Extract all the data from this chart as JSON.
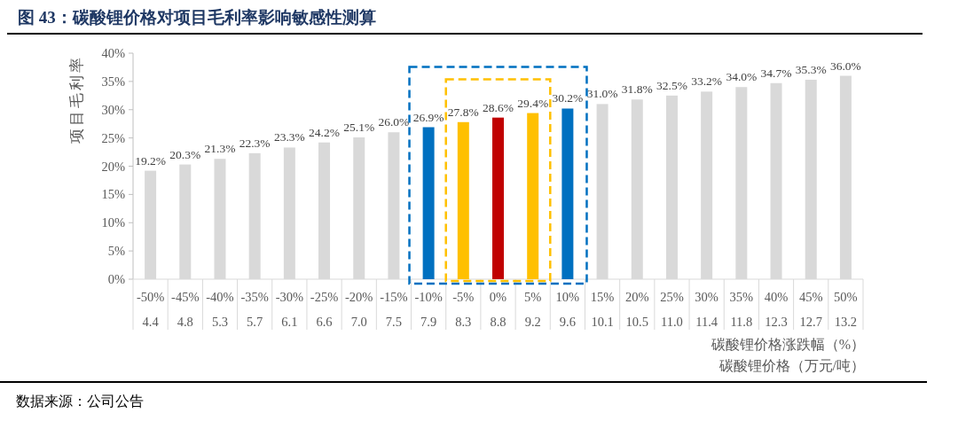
{
  "chart_data": {
    "type": "bar",
    "title": "图 43：碳酸锂价格对项目毛利率影响敏感性测算",
    "ylabel": "项目毛利率",
    "xlabel": "碳酸锂价格涨跌幅（%）",
    "categories": [
      "-50%",
      "-45%",
      "-40%",
      "-35%",
      "-30%",
      "-25%",
      "-20%",
      "-15%",
      "-10%",
      "-5%",
      "0%",
      "5%",
      "10%",
      "15%",
      "20%",
      "25%",
      "30%",
      "35%",
      "40%",
      "45%",
      "50%"
    ],
    "values": [
      19.2,
      20.3,
      21.3,
      22.3,
      23.3,
      24.2,
      25.1,
      26.0,
      26.9,
      27.8,
      28.6,
      29.4,
      30.2,
      31.0,
      31.8,
      32.5,
      33.2,
      34.0,
      34.7,
      35.3,
      36.0
    ],
    "value_labels": [
      "19.2%",
      "20.3%",
      "21.3%",
      "22.3%",
      "23.3%",
      "24.2%",
      "25.1%",
      "26.0%",
      "26.9%",
      "27.8%",
      "28.6%",
      "29.4%",
      "30.2%",
      "31.0%",
      "31.8%",
      "32.5%",
      "33.2%",
      "34.0%",
      "34.7%",
      "35.3%",
      "36.0%"
    ],
    "colors": [
      "#d9d9d9",
      "#d9d9d9",
      "#d9d9d9",
      "#d9d9d9",
      "#d9d9d9",
      "#d9d9d9",
      "#d9d9d9",
      "#d9d9d9",
      "#0070c0",
      "#ffc000",
      "#c00000",
      "#ffc000",
      "#0070c0",
      "#d9d9d9",
      "#d9d9d9",
      "#d9d9d9",
      "#d9d9d9",
      "#d9d9d9",
      "#d9d9d9",
      "#d9d9d9",
      "#d9d9d9"
    ],
    "ylim": [
      0,
      40
    ],
    "yticks": [
      {
        "value": 0,
        "label": "0%"
      },
      {
        "value": 5,
        "label": "5%"
      },
      {
        "value": 10,
        "label": "10%"
      },
      {
        "value": 15,
        "label": "15%"
      },
      {
        "value": 20,
        "label": "20%"
      },
      {
        "value": 25,
        "label": "25%"
      },
      {
        "value": 30,
        "label": "30%"
      },
      {
        "value": 35,
        "label": "35%"
      },
      {
        "value": 40,
        "label": "40%"
      }
    ],
    "annotations": [
      "4.4",
      "4.8",
      "5.3",
      "5.7",
      "6.1",
      "6.6",
      "7.0",
      "7.5",
      "7.9",
      "8.3",
      "8.8",
      "9.2",
      "9.6",
      "10.1",
      "10.5",
      "11.0",
      "11.4",
      "11.8",
      "12.3",
      "12.7",
      "13.2",
      "碳酸锂价格（万元/吨）",
      "数据来源：公司公告"
    ]
  }
}
